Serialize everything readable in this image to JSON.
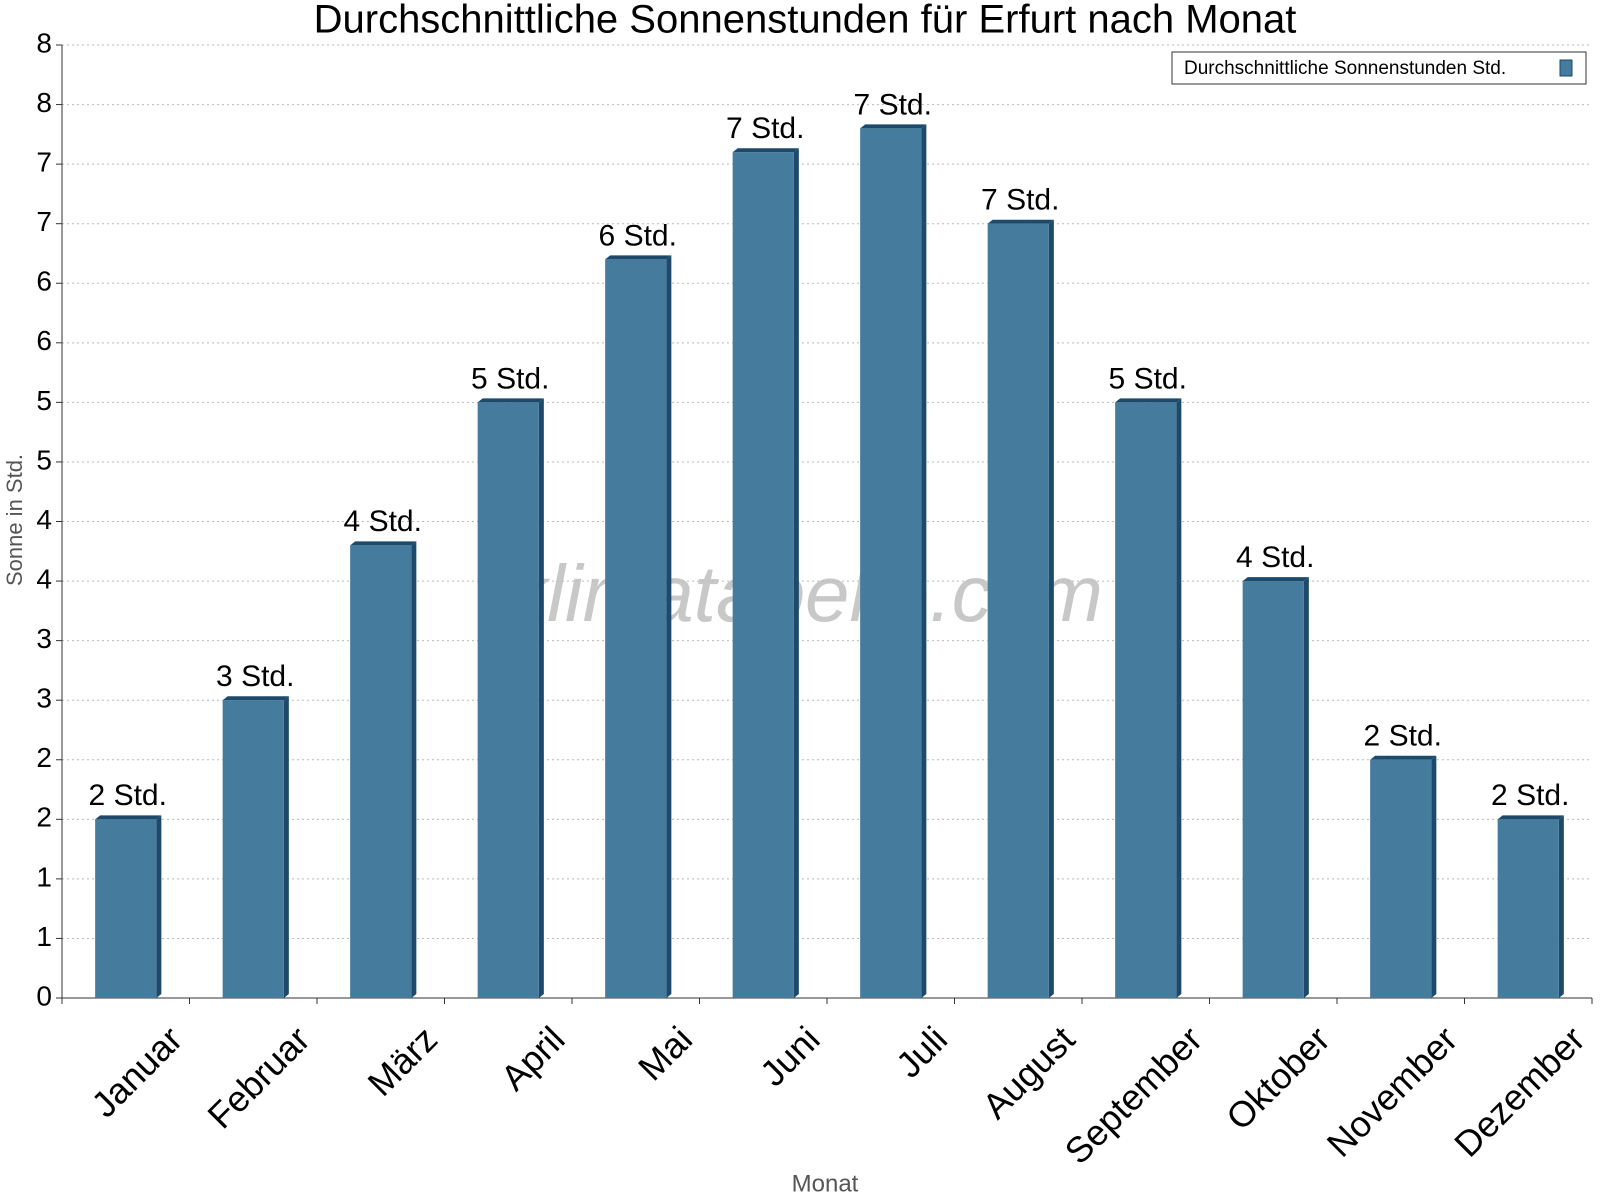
{
  "chart_data": {
    "type": "bar",
    "title": "Durchschnittliche Sonnenstunden für Erfurt nach Monat",
    "watermark": "klimatabelle.com",
    "x_label": "Monat",
    "y_label": "Sonne in Std.",
    "categories": [
      "Januar",
      "Februar",
      "März",
      "April",
      "Mai",
      "Juni",
      "Juli",
      "August",
      "September",
      "Oktober",
      "November",
      "Dezember"
    ],
    "series": [
      {
        "name": "Durchschnittliche Sonnenstunden Std.",
        "color": "#457b9d",
        "values": [
          1.5,
          2.5,
          3.8,
          5.0,
          6.2,
          7.1,
          7.3,
          6.5,
          5.0,
          3.5,
          2.0,
          1.5
        ],
        "value_labels": [
          "2 Std.",
          "3 Std.",
          "4 Std.",
          "5 Std.",
          "6 Std.",
          "7 Std.",
          "7 Std.",
          "7 Std.",
          "5 Std.",
          "4 Std.",
          "2 Std.",
          "2 Std."
        ]
      }
    ],
    "ylim": [
      0,
      8
    ],
    "yticks": [
      0,
      {
        "value": 0.5,
        "label": "1"
      },
      1,
      {
        "value": 1.5,
        "label": "2"
      },
      2,
      {
        "value": 2.5,
        "label": "3"
      },
      3,
      {
        "value": 3.5,
        "label": "4"
      },
      4,
      {
        "value": 4.5,
        "label": "5"
      },
      5,
      {
        "value": 5.5,
        "label": "6"
      },
      6,
      {
        "value": 6.5,
        "label": "7"
      },
      7,
      {
        "value": 7.5,
        "label": "8"
      },
      8
    ],
    "grid": true,
    "legend": "top-right"
  }
}
